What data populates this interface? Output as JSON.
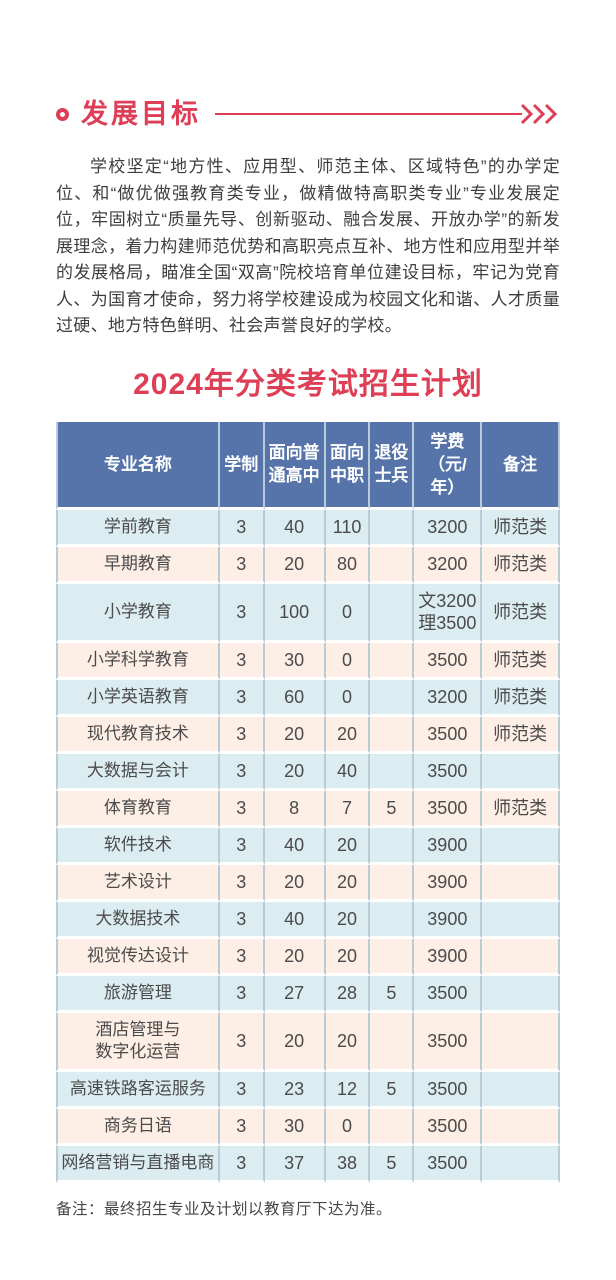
{
  "colors": {
    "accent_red": "#de3e56",
    "table_header_bg": "#5674a9",
    "row_blue": "#dcedf1",
    "row_pink": "#fdeee6",
    "divider": "#b7cbd9",
    "body_text": "#3e3e3e",
    "table_text": "#4b4b4b"
  },
  "section_header": {
    "title": "发展目标"
  },
  "intro_paragraph": "学校坚定“地方性、应用型、师范主体、区域特色”的办学定位、和“做优做强教育类专业，做精做特高职类专业”专业发展定位，牢固树立“质量先导、创新驱动、融合发展、开放办学”的新发展理念，着力构建师范优势和高职亮点互补、地方性和应用型并举的发展格局，瞄准全国“双高”院校培育单位建设目标，牢记为党育人、为国育才使命，努力将学校建设成为校园文化和谐、人才质量过硬、地方特色鲜明、社会声誉良好的学校。",
  "plan_title": "2024年分类考试招生计划",
  "table": {
    "columns": [
      {
        "label": "专业名称",
        "width": 32.5
      },
      {
        "label": "学制",
        "width": 8.9
      },
      {
        "label": "面向普\n通高中",
        "width": 12.1
      },
      {
        "label": "面向\n中职",
        "width": 8.9
      },
      {
        "label": "退役\n士兵",
        "width": 8.7
      },
      {
        "label": "学费\n（元/年）",
        "width": 13.5
      },
      {
        "label": "备注",
        "width": 15.4
      }
    ],
    "rows": [
      [
        "学前教育",
        "3",
        "40",
        "110",
        "",
        "3200",
        "师范类"
      ],
      [
        "早期教育",
        "3",
        "20",
        "80",
        "",
        "3200",
        "师范类"
      ],
      [
        "小学教育",
        "3",
        "100",
        "0",
        "",
        "文3200\n理3500",
        "师范类"
      ],
      [
        "小学科学教育",
        "3",
        "30",
        "0",
        "",
        "3500",
        "师范类"
      ],
      [
        "小学英语教育",
        "3",
        "60",
        "0",
        "",
        "3200",
        "师范类"
      ],
      [
        "现代教育技术",
        "3",
        "20",
        "20",
        "",
        "3500",
        "师范类"
      ],
      [
        "大数据与会计",
        "3",
        "20",
        "40",
        "",
        "3500",
        ""
      ],
      [
        "体育教育",
        "3",
        "8",
        "7",
        "5",
        "3500",
        "师范类"
      ],
      [
        "软件技术",
        "3",
        "40",
        "20",
        "",
        "3900",
        ""
      ],
      [
        "艺术设计",
        "3",
        "20",
        "20",
        "",
        "3900",
        ""
      ],
      [
        "大数据技术",
        "3",
        "40",
        "20",
        "",
        "3900",
        ""
      ],
      [
        "视觉传达设计",
        "3",
        "20",
        "20",
        "",
        "3900",
        ""
      ],
      [
        "旅游管理",
        "3",
        "27",
        "28",
        "5",
        "3500",
        ""
      ],
      [
        "酒店管理与\n数字化运营",
        "3",
        "20",
        "20",
        "",
        "3500",
        ""
      ],
      [
        "高速铁路客运服务",
        "3",
        "23",
        "12",
        "5",
        "3500",
        ""
      ],
      [
        "商务日语",
        "3",
        "30",
        "0",
        "",
        "3500",
        ""
      ],
      [
        "网络营销与直播电商",
        "3",
        "37",
        "38",
        "5",
        "3500",
        ""
      ]
    ]
  },
  "footnote": "备注：最终招生专业及计划以教育厅下达为准。"
}
